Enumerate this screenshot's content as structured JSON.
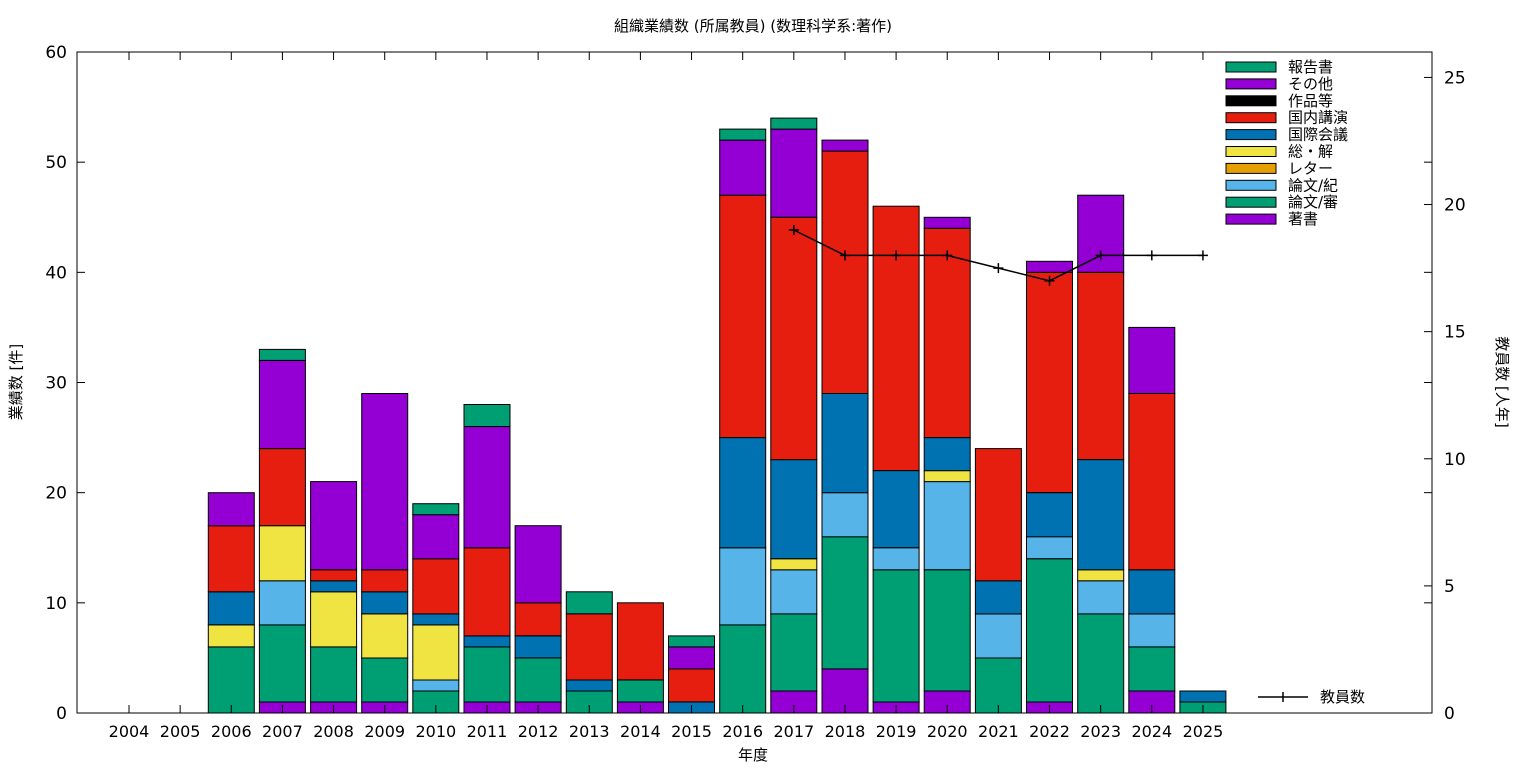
{
  "chart_data": {
    "type": "bar",
    "stacked": true,
    "title": "組織業績数 (所属教員) (数理科学系:著作)",
    "xlabel": "年度",
    "ylabel": "業績数 [件]",
    "y2label": "教員数 [人年]",
    "ylim": [
      0,
      60
    ],
    "y2lim": [
      0,
      26
    ],
    "yticks": [
      0,
      10,
      20,
      30,
      40,
      50,
      60
    ],
    "y2ticks": [
      0,
      5,
      10,
      15,
      20,
      25
    ],
    "grid": false,
    "legend_position": "top-right",
    "categories": [
      "2004",
      "2005",
      "2006",
      "2007",
      "2008",
      "2009",
      "2010",
      "2011",
      "2012",
      "2013",
      "2014",
      "2015",
      "2016",
      "2017",
      "2018",
      "2019",
      "2020",
      "2021",
      "2022",
      "2023",
      "2024",
      "2025"
    ],
    "series": [
      {
        "name": "著書",
        "color": "#9400d3",
        "values": [
          0,
          0,
          0,
          1,
          1,
          1,
          0,
          1,
          1,
          0,
          1,
          0,
          0,
          2,
          4,
          1,
          2,
          0,
          1,
          0,
          2,
          0
        ]
      },
      {
        "name": "論文/審",
        "color": "#009e73",
        "values": [
          0,
          0,
          6,
          7,
          5,
          4,
          2,
          5,
          4,
          2,
          2,
          0,
          8,
          7,
          12,
          12,
          11,
          5,
          13,
          9,
          4,
          1
        ]
      },
      {
        "name": "論文/紀",
        "color": "#56b4e9",
        "values": [
          0,
          0,
          0,
          4,
          0,
          0,
          1,
          0,
          0,
          0,
          0,
          0,
          7,
          4,
          4,
          2,
          8,
          4,
          2,
          3,
          3,
          0
        ]
      },
      {
        "name": "レター",
        "color": "#e69f00",
        "values": [
          0,
          0,
          0,
          0,
          0,
          0,
          0,
          0,
          0,
          0,
          0,
          0,
          0,
          0,
          0,
          0,
          0,
          0,
          0,
          0,
          0,
          0
        ]
      },
      {
        "name": "総・解",
        "color": "#f0e442",
        "values": [
          0,
          0,
          2,
          5,
          5,
          4,
          5,
          0,
          0,
          0,
          0,
          0,
          0,
          1,
          0,
          0,
          1,
          0,
          0,
          1,
          0,
          0
        ]
      },
      {
        "name": "国際会議",
        "color": "#0072b2",
        "values": [
          0,
          0,
          3,
          0,
          1,
          2,
          1,
          1,
          2,
          1,
          0,
          1,
          10,
          9,
          9,
          7,
          3,
          3,
          4,
          10,
          4,
          1
        ]
      },
      {
        "name": "国内講演",
        "color": "#e51e10",
        "values": [
          0,
          0,
          6,
          7,
          1,
          2,
          5,
          8,
          3,
          6,
          7,
          3,
          22,
          22,
          22,
          24,
          19,
          12,
          20,
          17,
          16,
          0
        ]
      },
      {
        "name": "作品等",
        "color": "#000000",
        "values": [
          0,
          0,
          0,
          0,
          0,
          0,
          0,
          0,
          0,
          0,
          0,
          0,
          0,
          0,
          0,
          0,
          0,
          0,
          0,
          0,
          0,
          0
        ]
      },
      {
        "name": "その他",
        "color": "#9400d3",
        "values": [
          0,
          0,
          3,
          8,
          8,
          16,
          4,
          11,
          7,
          0,
          0,
          2,
          5,
          8,
          1,
          0,
          1,
          0,
          1,
          7,
          6,
          0
        ]
      },
      {
        "name": "報告書",
        "color": "#009e73",
        "values": [
          0,
          0,
          0,
          1,
          0,
          0,
          1,
          2,
          0,
          2,
          0,
          1,
          1,
          1,
          0,
          0,
          0,
          0,
          0,
          0,
          0,
          0
        ]
      }
    ],
    "line_series": {
      "name": "教員数",
      "color": "#000000",
      "axis": "y2",
      "x": [
        "2017",
        "2018",
        "2019",
        "2020",
        "2021",
        "2022",
        "2023",
        "2024",
        "2025"
      ],
      "values": [
        19,
        18,
        18,
        18,
        17.5,
        17,
        18,
        18,
        18
      ]
    }
  }
}
